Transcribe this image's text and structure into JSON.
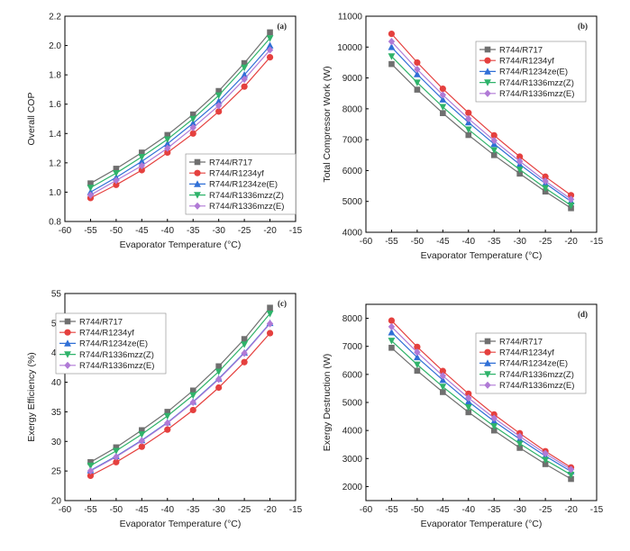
{
  "chart_data": [
    {
      "panel": "(a)",
      "type": "line",
      "xlabel": "Evaporator Temperature (°C)",
      "ylabel": "Overall COP",
      "xlim": [
        -60,
        -15
      ],
      "ylim": [
        0.8,
        2.2
      ],
      "xticks": [
        -60,
        -55,
        -50,
        -45,
        -40,
        -35,
        -30,
        -25,
        -20,
        -15
      ],
      "yticks": [
        "0.8",
        "1.0",
        "1.2",
        "1.4",
        "1.6",
        "1.8",
        "2.0",
        "2.2"
      ],
      "x": [
        -55,
        -50,
        -45,
        -40,
        -35,
        -30,
        -25,
        -20
      ],
      "legend_position": "bottom-right",
      "series": [
        {
          "name": "R744/R717",
          "color": "#6f6f6f",
          "marker": "square",
          "values": [
            1.06,
            1.16,
            1.27,
            1.39,
            1.53,
            1.69,
            1.88,
            2.09
          ]
        },
        {
          "name": "R744/R1234yf",
          "color": "#e5403e",
          "marker": "circle",
          "values": [
            0.96,
            1.05,
            1.15,
            1.27,
            1.4,
            1.55,
            1.72,
            1.92
          ]
        },
        {
          "name": "R744/R1234ze(E)",
          "color": "#2f6fd6",
          "marker": "triangle-up",
          "values": [
            1.0,
            1.1,
            1.21,
            1.33,
            1.47,
            1.62,
            1.8,
            2.0
          ]
        },
        {
          "name": "R744/R1336mzz(Z)",
          "color": "#2fb36a",
          "marker": "triangle-down",
          "values": [
            1.03,
            1.13,
            1.24,
            1.36,
            1.5,
            1.66,
            1.85,
            2.05
          ]
        },
        {
          "name": "R744/R1336mzz(E)",
          "color": "#b07ad6",
          "marker": "diamond",
          "values": [
            0.98,
            1.08,
            1.18,
            1.3,
            1.44,
            1.59,
            1.77,
            1.97
          ]
        }
      ]
    },
    {
      "panel": "(b)",
      "type": "line",
      "xlabel": "Evaporator Temperature (°C)",
      "ylabel": "Total Compressor Work (W)",
      "xlim": [
        -60,
        -15
      ],
      "ylim": [
        4000,
        11000
      ],
      "xticks": [
        -60,
        -55,
        -50,
        -45,
        -40,
        -35,
        -30,
        -25,
        -20,
        -15
      ],
      "yticks": [
        "4000",
        "5000",
        "6000",
        "7000",
        "8000",
        "9000",
        "10000",
        "11000"
      ],
      "x": [
        -55,
        -50,
        -45,
        -40,
        -35,
        -30,
        -25,
        -20
      ],
      "legend_position": "top-right",
      "series": [
        {
          "name": "R744/R717",
          "color": "#6f6f6f",
          "marker": "square",
          "values": [
            9450,
            8620,
            7860,
            7150,
            6500,
            5900,
            5320,
            4780
          ]
        },
        {
          "name": "R744/R1234yf",
          "color": "#e5403e",
          "marker": "circle",
          "values": [
            10430,
            9500,
            8650,
            7870,
            7140,
            6450,
            5800,
            5200
          ]
        },
        {
          "name": "R744/R1234ze(E)",
          "color": "#2f6fd6",
          "marker": "triangle-up",
          "values": [
            10000,
            9120,
            8300,
            7560,
            6860,
            6200,
            5580,
            5000
          ]
        },
        {
          "name": "R744/R1336mzz(Z)",
          "color": "#2fb36a",
          "marker": "triangle-down",
          "values": [
            9700,
            8850,
            8060,
            7330,
            6660,
            6030,
            5430,
            4870
          ]
        },
        {
          "name": "R744/R1336mzz(E)",
          "color": "#b07ad6",
          "marker": "diamond",
          "values": [
            10180,
            9280,
            8450,
            7680,
            6970,
            6300,
            5660,
            5070
          ]
        }
      ]
    },
    {
      "panel": "(c)",
      "type": "line",
      "xlabel": "Evaporator Temperature (°C)",
      "ylabel": "Exergy Efficiency (%)",
      "xlim": [
        -60,
        -15
      ],
      "ylim": [
        20,
        55
      ],
      "xticks": [
        -60,
        -55,
        -50,
        -45,
        -40,
        -35,
        -30,
        -25,
        -20,
        -15
      ],
      "yticks": [
        "20",
        "25",
        "30",
        "35",
        "40",
        "45",
        "50",
        "55"
      ],
      "x": [
        -55,
        -50,
        -45,
        -40,
        -35,
        -30,
        -25,
        -20
      ],
      "legend_position": "top-left",
      "series": [
        {
          "name": "R744/R717",
          "color": "#6f6f6f",
          "marker": "square",
          "values": [
            26.5,
            29.0,
            31.9,
            35.0,
            38.6,
            42.7,
            47.3,
            52.6
          ]
        },
        {
          "name": "R744/R1234yf",
          "color": "#e5403e",
          "marker": "circle",
          "values": [
            24.2,
            26.5,
            29.1,
            32.0,
            35.3,
            39.1,
            43.4,
            48.3
          ]
        },
        {
          "name": "R744/R1234ze(E)",
          "color": "#2f6fd6",
          "marker": "triangle-up",
          "values": [
            25.1,
            27.5,
            30.2,
            33.2,
            36.7,
            40.6,
            45.0,
            50.0
          ]
        },
        {
          "name": "R744/R1336mzz(Z)",
          "color": "#2fb36a",
          "marker": "triangle-down",
          "values": [
            25.9,
            28.4,
            31.2,
            34.3,
            37.8,
            41.8,
            46.4,
            51.6
          ]
        },
        {
          "name": "R744/R1336mzz(E)",
          "color": "#b07ad6",
          "marker": "diamond",
          "values": [
            25.0,
            27.4,
            30.1,
            33.1,
            36.6,
            40.5,
            44.9,
            49.9
          ]
        }
      ]
    },
    {
      "panel": "(d)",
      "type": "line",
      "xlabel": "Evaporator Temperature (°C)",
      "ylabel": "Exergy Destruction (W)",
      "xlim": [
        -60,
        -15
      ],
      "ylim": [
        1500,
        8500
      ],
      "xticks": [
        -60,
        -55,
        -50,
        -45,
        -40,
        -35,
        -30,
        -25,
        -20,
        -15
      ],
      "yticks": [
        "2000",
        "3000",
        "4000",
        "5000",
        "6000",
        "7000",
        "8000"
      ],
      "x": [
        -55,
        -50,
        -45,
        -40,
        -35,
        -30,
        -25,
        -20
      ],
      "legend_position": "top-right",
      "series": [
        {
          "name": "R744/R717",
          "color": "#6f6f6f",
          "marker": "square",
          "values": [
            6950,
            6130,
            5370,
            4650,
            4000,
            3380,
            2800,
            2270
          ]
        },
        {
          "name": "R744/R1234yf",
          "color": "#e5403e",
          "marker": "circle",
          "values": [
            7920,
            6980,
            6120,
            5310,
            4570,
            3900,
            3260,
            2680
          ]
        },
        {
          "name": "R744/R1234ze(E)",
          "color": "#2f6fd6",
          "marker": "triangle-up",
          "values": [
            7500,
            6610,
            5800,
            5030,
            4330,
            3690,
            3090,
            2540
          ]
        },
        {
          "name": "R744/R1336mzz(Z)",
          "color": "#2fb36a",
          "marker": "triangle-down",
          "values": [
            7200,
            6350,
            5560,
            4830,
            4150,
            3530,
            2950,
            2420
          ]
        },
        {
          "name": "R744/R1336mzz(E)",
          "color": "#b07ad6",
          "marker": "diamond",
          "values": [
            7700,
            6790,
            5950,
            5160,
            4440,
            3790,
            3180,
            2610
          ]
        }
      ]
    }
  ]
}
